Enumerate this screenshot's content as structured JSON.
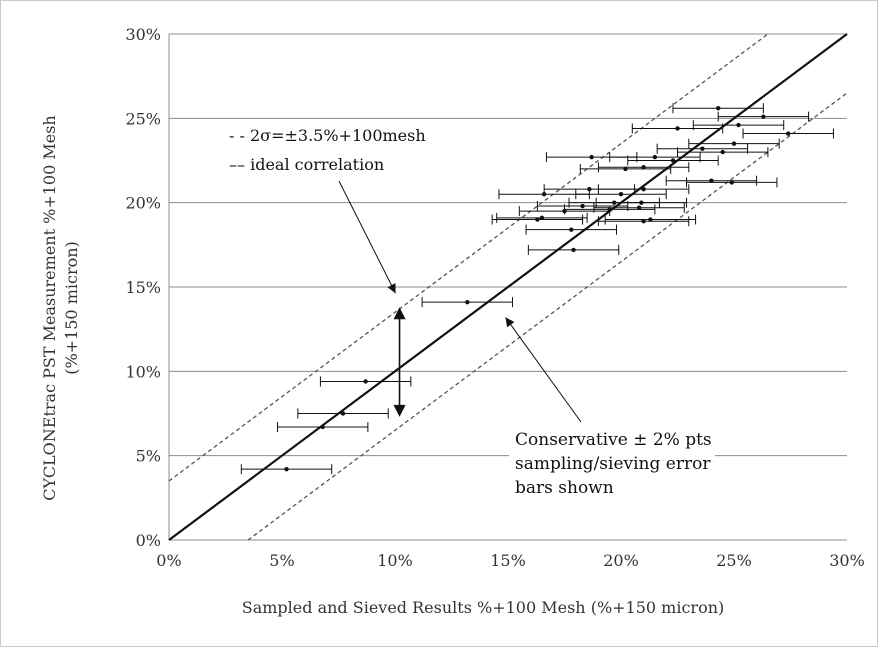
{
  "chart_data": {
    "type": "scatter",
    "xlabel": "Sampled and Sieved Results %+100 Mesh (%+150 micron)",
    "ylabel": [
      "CYCLONEtrac PST Measurement  %+100 Mesh",
      "(%+150 micron)"
    ],
    "xlim": [
      0,
      30
    ],
    "ylim": [
      0,
      30
    ],
    "xticks": [
      0,
      5,
      10,
      15,
      20,
      25,
      30
    ],
    "yticks": [
      0,
      5,
      10,
      15,
      20,
      25,
      30
    ],
    "xtick_labels": [
      "0%",
      "5%",
      "10%",
      "15%",
      "20%",
      "25%",
      "30%"
    ],
    "ytick_labels": [
      "0%",
      "5%",
      "10%",
      "15%",
      "20%",
      "25%",
      "30%"
    ],
    "grid": "horizontal",
    "error_bar_x": 2,
    "series": [
      {
        "kind": "points",
        "points": [
          [
            5.2,
            4.2
          ],
          [
            6.8,
            6.7
          ],
          [
            7.7,
            7.5
          ],
          [
            8.7,
            9.4
          ],
          [
            13.2,
            14.1
          ],
          [
            17.9,
            17.2
          ],
          [
            17.8,
            18.4
          ],
          [
            16.3,
            19.0
          ],
          [
            16.5,
            19.1
          ],
          [
            21.0,
            18.9
          ],
          [
            21.3,
            19.0
          ],
          [
            17.5,
            19.5
          ],
          [
            19.5,
            19.6
          ],
          [
            20.8,
            19.7
          ],
          [
            18.3,
            19.8
          ],
          [
            19.7,
            20.0
          ],
          [
            20.9,
            20.0
          ],
          [
            18.6,
            20.8
          ],
          [
            21.0,
            20.8
          ],
          [
            16.6,
            20.5
          ],
          [
            20.0,
            20.5
          ],
          [
            24.0,
            21.3
          ],
          [
            24.9,
            21.2
          ],
          [
            20.2,
            22.0
          ],
          [
            21.0,
            22.1
          ],
          [
            18.7,
            22.7
          ],
          [
            21.5,
            22.7
          ],
          [
            22.3,
            22.5
          ],
          [
            24.5,
            23.0
          ],
          [
            23.6,
            23.2
          ],
          [
            25.0,
            23.5
          ],
          [
            27.4,
            24.1
          ],
          [
            22.5,
            24.4
          ],
          [
            25.2,
            24.6
          ],
          [
            26.3,
            25.1
          ],
          [
            24.3,
            25.6
          ]
        ]
      },
      {
        "kind": "line",
        "dash": "solid",
        "points": [
          [
            0,
            0
          ],
          [
            30,
            30
          ]
        ]
      },
      {
        "kind": "line",
        "dash": "dashed",
        "points": [
          [
            0,
            3.5
          ],
          [
            26.5,
            30
          ]
        ]
      },
      {
        "kind": "line",
        "dash": "dashed",
        "points": [
          [
            3.5,
            0
          ],
          [
            30,
            26.5
          ]
        ]
      }
    ],
    "legend": {
      "placement": "upper-left",
      "entries": [
        "- - 2σ=±3.5%+100mesh",
        "–– ideal correlation"
      ]
    },
    "annotations": [
      "Conservative ± 2% pts",
      "sampling/sieving error",
      "bars shown"
    ],
    "double_arrow": {
      "x": 10.2,
      "y_from": 7.3,
      "y_to": 13.8
    }
  }
}
